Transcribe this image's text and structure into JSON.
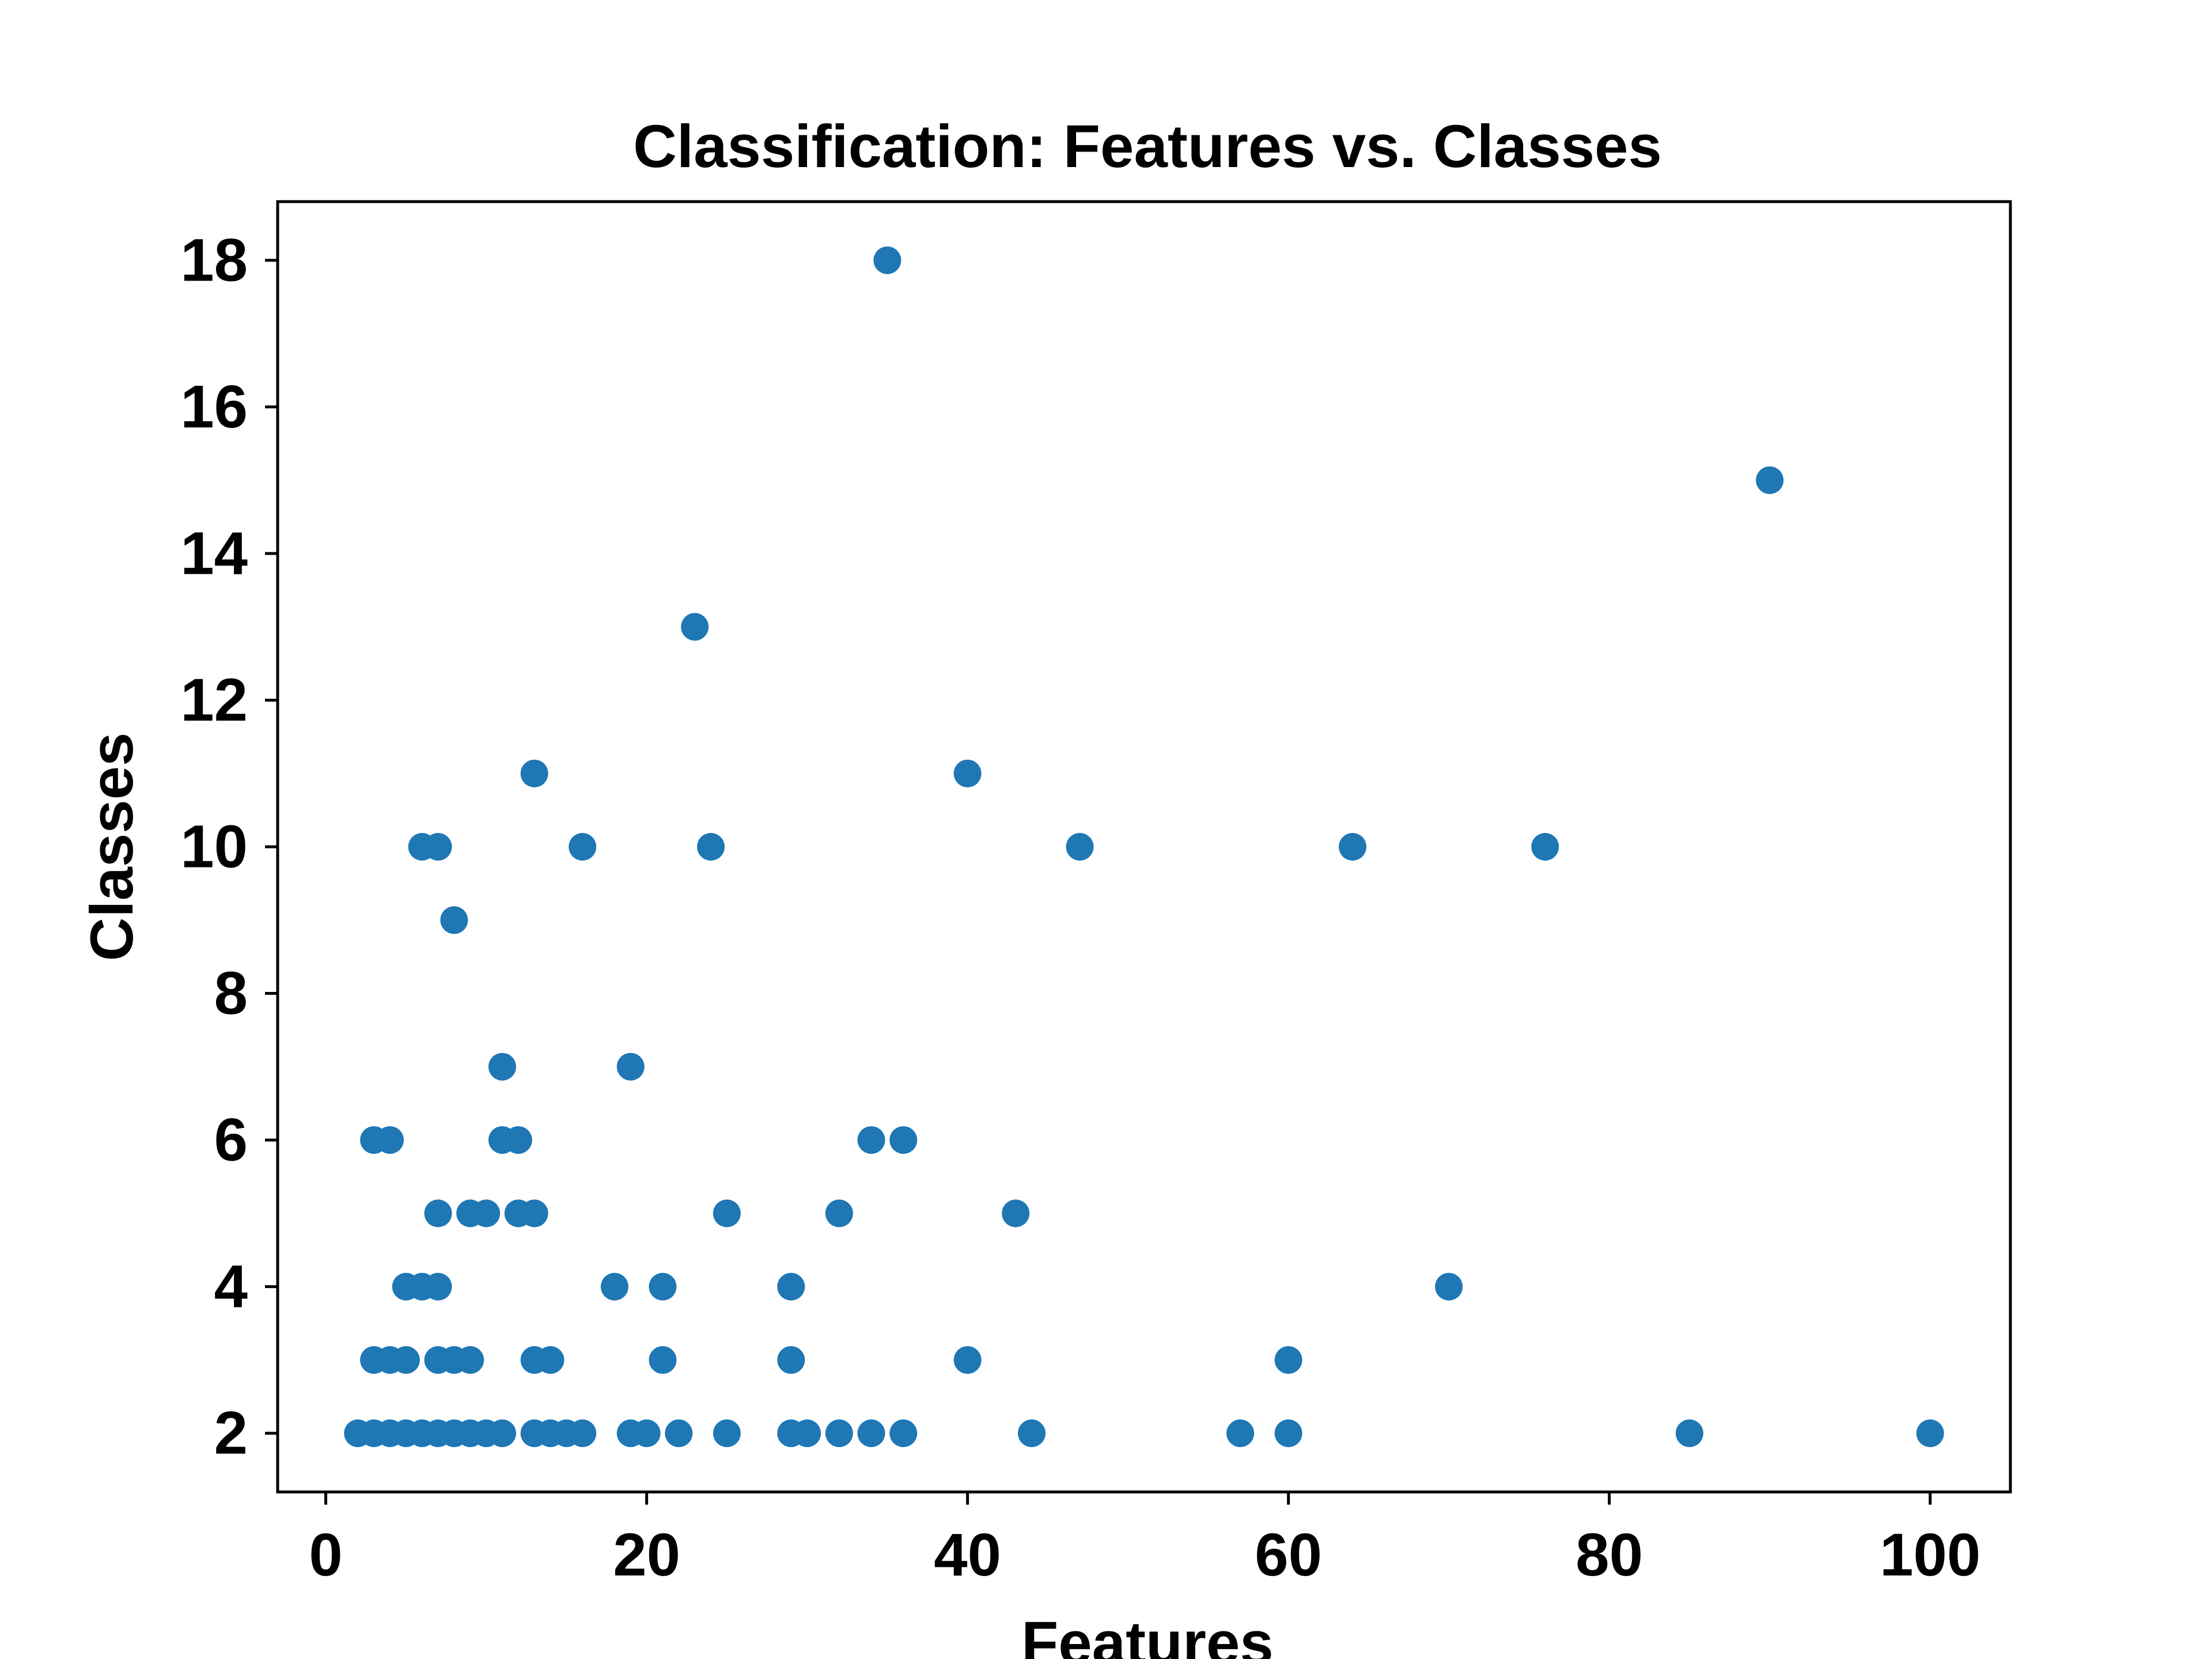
{
  "chart_data": {
    "type": "scatter",
    "title": "Classification: Features vs. Classes",
    "xlabel": "Features",
    "ylabel": "Classes",
    "xlim": [
      -3,
      105
    ],
    "ylim": [
      1.2,
      18.8
    ],
    "xticks": [
      0,
      20,
      40,
      60,
      80,
      100
    ],
    "yticks": [
      2,
      4,
      6,
      8,
      10,
      12,
      14,
      16,
      18
    ],
    "grid": false,
    "legend": "none",
    "marker_color": "#1f77b4",
    "points": [
      [
        2,
        2
      ],
      [
        3,
        2
      ],
      [
        4,
        2
      ],
      [
        5,
        2
      ],
      [
        6,
        2
      ],
      [
        7,
        2
      ],
      [
        8,
        2
      ],
      [
        9,
        2
      ],
      [
        10,
        2
      ],
      [
        11,
        2
      ],
      [
        13,
        2
      ],
      [
        14,
        2
      ],
      [
        15,
        2
      ],
      [
        16,
        2
      ],
      [
        19,
        2
      ],
      [
        20,
        2
      ],
      [
        22,
        2
      ],
      [
        25,
        2
      ],
      [
        29,
        2
      ],
      [
        30,
        2
      ],
      [
        32,
        2
      ],
      [
        34,
        2
      ],
      [
        36,
        2
      ],
      [
        44,
        2
      ],
      [
        57,
        2
      ],
      [
        60,
        2
      ],
      [
        85,
        2
      ],
      [
        100,
        2
      ],
      [
        3,
        3
      ],
      [
        4,
        3
      ],
      [
        5,
        3
      ],
      [
        7,
        3
      ],
      [
        8,
        3
      ],
      [
        9,
        3
      ],
      [
        13,
        3
      ],
      [
        14,
        3
      ],
      [
        21,
        3
      ],
      [
        29,
        3
      ],
      [
        40,
        3
      ],
      [
        60,
        3
      ],
      [
        5,
        4
      ],
      [
        6,
        4
      ],
      [
        7,
        4
      ],
      [
        18,
        4
      ],
      [
        21,
        4
      ],
      [
        29,
        4
      ],
      [
        70,
        4
      ],
      [
        7,
        5
      ],
      [
        9,
        5
      ],
      [
        10,
        5
      ],
      [
        12,
        5
      ],
      [
        13,
        5
      ],
      [
        25,
        5
      ],
      [
        32,
        5
      ],
      [
        43,
        5
      ],
      [
        3,
        6
      ],
      [
        4,
        6
      ],
      [
        11,
        6
      ],
      [
        12,
        6
      ],
      [
        34,
        6
      ],
      [
        36,
        6
      ],
      [
        11,
        7
      ],
      [
        19,
        7
      ],
      [
        8,
        9
      ],
      [
        6,
        10
      ],
      [
        7,
        10
      ],
      [
        16,
        10
      ],
      [
        24,
        10
      ],
      [
        47,
        10
      ],
      [
        64,
        10
      ],
      [
        76,
        10
      ],
      [
        13,
        11
      ],
      [
        40,
        11
      ],
      [
        23,
        13
      ],
      [
        90,
        15
      ],
      [
        35,
        18
      ]
    ]
  }
}
